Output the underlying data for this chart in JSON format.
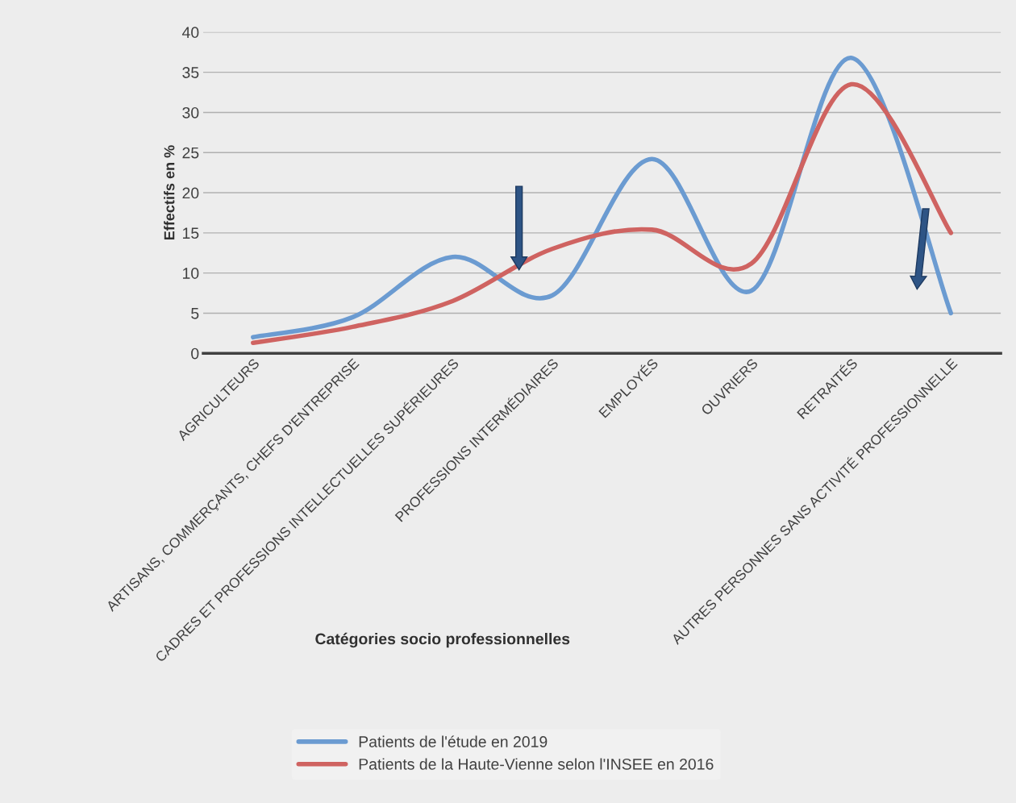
{
  "chart_data": {
    "type": "line",
    "categories": [
      "AGRICULTEURS",
      "ARTISANS, COMMERÇANTS, CHEFS D'ENTREPRISE",
      "CADRES ET PROFESSIONS INTELLECTUELLES SUPÉRIEURES",
      "PROFESSIONS INTERMÉDIAIRES",
      "EMPLOYÉS",
      "OUVRIERS",
      "RETRAITÉS",
      "AUTRES PERSONNES SANS ACTIVITÉ PROFESSIONNELLE"
    ],
    "series": [
      {
        "name": "Patients de l'étude en 2019",
        "color": "#6b9bd1",
        "values": [
          2.0,
          4.5,
          12.0,
          7.2,
          24.2,
          7.8,
          36.8,
          5.0
        ]
      },
      {
        "name": "Patients de la Haute-Vienne selon l'INSEE en 2016",
        "color": "#cf6361",
        "values": [
          1.3,
          3.3,
          6.5,
          13.0,
          15.4,
          11.2,
          33.5,
          15.0
        ]
      }
    ],
    "xlabel": "Catégories socio professionnelles",
    "ylabel": "Effectifs en %",
    "ylim": [
      0,
      40
    ],
    "yticks": [
      0,
      5,
      10,
      15,
      20,
      25,
      30,
      35,
      40
    ],
    "grid": "y",
    "legend": "bottom",
    "marker": "none",
    "line_style": "solid"
  }
}
